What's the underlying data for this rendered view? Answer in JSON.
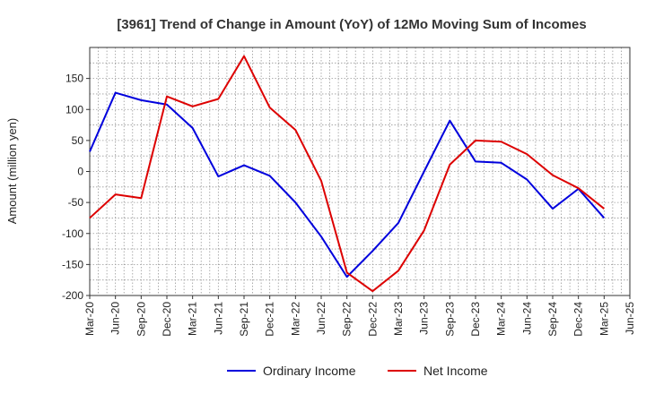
{
  "chart_data": {
    "type": "line",
    "title": "[3961]  Trend of Change in Amount (YoY) of 12Mo Moving Sum of Incomes",
    "xlabel": "",
    "ylabel": "Amount (million yen)",
    "ylim": [
      -200,
      200
    ],
    "yticks": [
      150,
      100,
      50,
      0,
      -50,
      -100,
      -150,
      -200
    ],
    "grid": true,
    "legend_position": "bottom",
    "categories": [
      "Mar-20",
      "Jun-20",
      "Sep-20",
      "Dec-20",
      "Mar-21",
      "Jun-21",
      "Sep-21",
      "Dec-21",
      "Mar-22",
      "Jun-22",
      "Sep-22",
      "Dec-22",
      "Mar-23",
      "Jun-23",
      "Sep-23",
      "Dec-23",
      "Mar-24",
      "Jun-24",
      "Sep-24",
      "Dec-24",
      "Mar-25",
      "Jun-25"
    ],
    "series": [
      {
        "name": "Ordinary Income",
        "color": "#0000dd",
        "values": [
          32,
          127,
          115,
          108,
          70,
          -8,
          10,
          -7,
          -50,
          -105,
          -170,
          -128,
          -83,
          0,
          82,
          16,
          14,
          -13,
          -60,
          -28,
          -75,
          null
        ]
      },
      {
        "name": "Net Income",
        "color": "#dd0000",
        "values": [
          -75,
          -37,
          -43,
          121,
          105,
          117,
          186,
          103,
          67,
          -15,
          -163,
          -193,
          -160,
          -95,
          11,
          50,
          48,
          28,
          -6,
          -27,
          -60,
          null
        ]
      }
    ]
  }
}
